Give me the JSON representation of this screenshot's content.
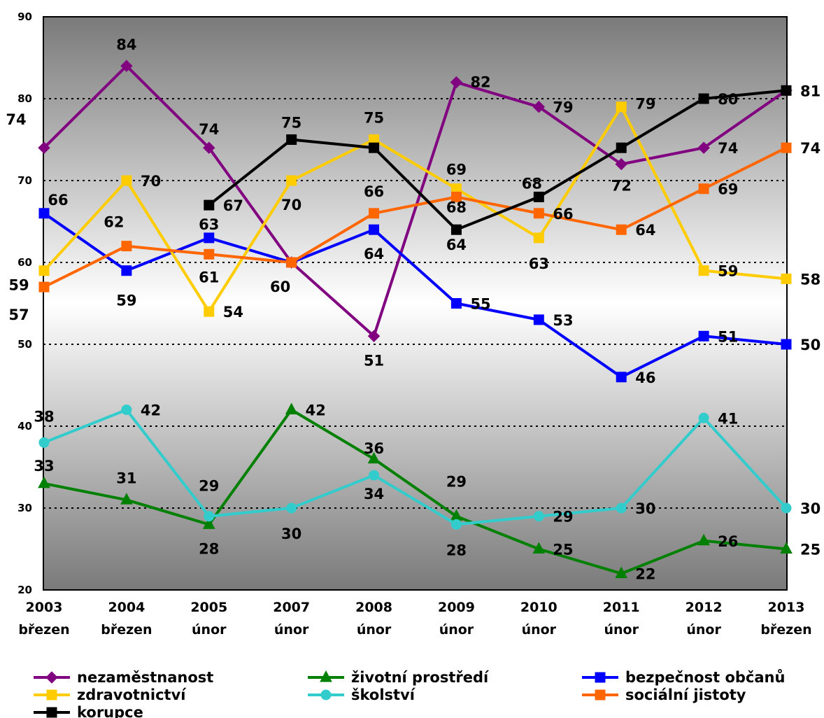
{
  "chart_data": {
    "type": "line",
    "categories": [
      {
        "year": "2003",
        "month": "březen"
      },
      {
        "year": "2004",
        "month": "březen"
      },
      {
        "year": "2005",
        "month": "únor"
      },
      {
        "year": "2007",
        "month": "únor"
      },
      {
        "year": "2008",
        "month": "únor"
      },
      {
        "year": "2009",
        "month": "únor"
      },
      {
        "year": "2010",
        "month": "únor"
      },
      {
        "year": "2011",
        "month": "únor"
      },
      {
        "year": "2012",
        "month": "únor"
      },
      {
        "year": "2013",
        "month": "březen"
      }
    ],
    "ylim": [
      20,
      90
    ],
    "yticks": [
      20,
      30,
      40,
      50,
      60,
      70,
      80,
      90
    ],
    "gridlines": "dotted",
    "legend_position": "bottom",
    "series": [
      {
        "name": "nezaměstnanost",
        "color": "#800080",
        "marker": "diamond",
        "values": [
          74,
          84,
          74,
          60,
          51,
          82,
          79,
          72,
          74,
          81
        ]
      },
      {
        "name": "životní prostředí",
        "color": "#008000",
        "marker": "triangle",
        "values": [
          33,
          31,
          28,
          42,
          36,
          29,
          25,
          22,
          26,
          25
        ]
      },
      {
        "name": "bezpečnost občanů",
        "color": "#0000FF",
        "marker": "square",
        "values": [
          66,
          59,
          63,
          60,
          64,
          55,
          53,
          46,
          51,
          50
        ]
      },
      {
        "name": "zdravotnictví",
        "color": "#FFCC00",
        "marker": "square",
        "values": [
          59,
          70,
          54,
          70,
          75,
          69,
          63,
          79,
          59,
          58
        ]
      },
      {
        "name": "školství",
        "color": "#33CCCC",
        "marker": "circle",
        "values": [
          38,
          42,
          29,
          30,
          34,
          28,
          29,
          30,
          41,
          30
        ]
      },
      {
        "name": "sociální jistoty",
        "color": "#FF6600",
        "marker": "square",
        "values": [
          57,
          62,
          61,
          60,
          66,
          68,
          66,
          64,
          69,
          74
        ]
      },
      {
        "name": "korupce",
        "color": "#000000",
        "marker": "square",
        "values": [
          null,
          null,
          67,
          75,
          74,
          64,
          68,
          74,
          80,
          81
        ]
      }
    ]
  }
}
